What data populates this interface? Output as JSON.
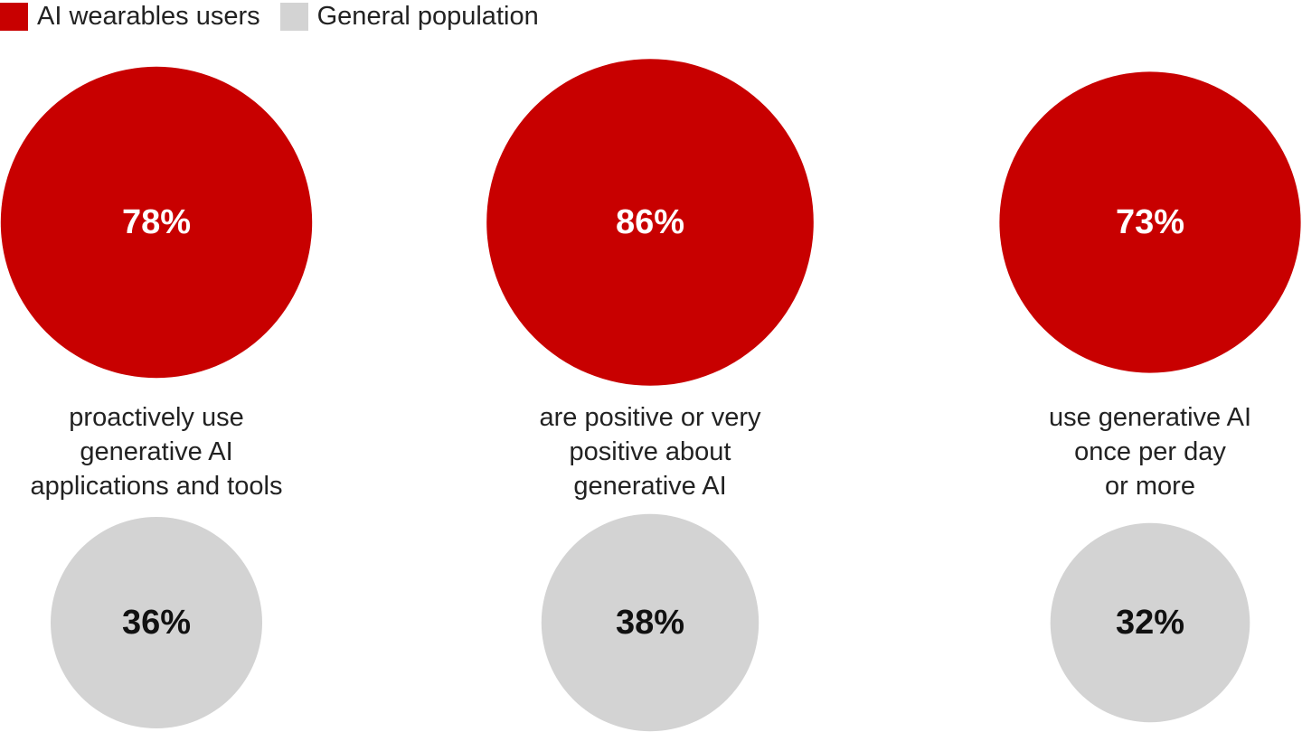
{
  "chart_data": {
    "type": "bubble",
    "legend": {
      "placement": "top-left",
      "entries": [
        {
          "name": "AI wearables users",
          "color": "#c80000"
        },
        {
          "name": "General population",
          "color": "#d3d3d3"
        }
      ]
    },
    "categories": [
      {
        "caption": [
          "proactively use",
          "generative AI",
          "applications and tools"
        ],
        "values": {
          "ai_wearables_users": 78,
          "general_population": 36
        },
        "labels": {
          "ai_wearables_users": "78%",
          "general_population": "36%"
        }
      },
      {
        "caption": [
          "are positive or very",
          "positive about",
          "generative AI"
        ],
        "values": {
          "ai_wearables_users": 86,
          "general_population": 38
        },
        "labels": {
          "ai_wearables_users": "86%",
          "general_population": "38%"
        }
      },
      {
        "caption": [
          "use generative AI",
          "once per day",
          "or more"
        ],
        "values": {
          "ai_wearables_users": 73,
          "general_population": 32
        },
        "labels": {
          "ai_wearables_users": "73%",
          "general_population": "32%"
        }
      }
    ],
    "unit": "%"
  }
}
